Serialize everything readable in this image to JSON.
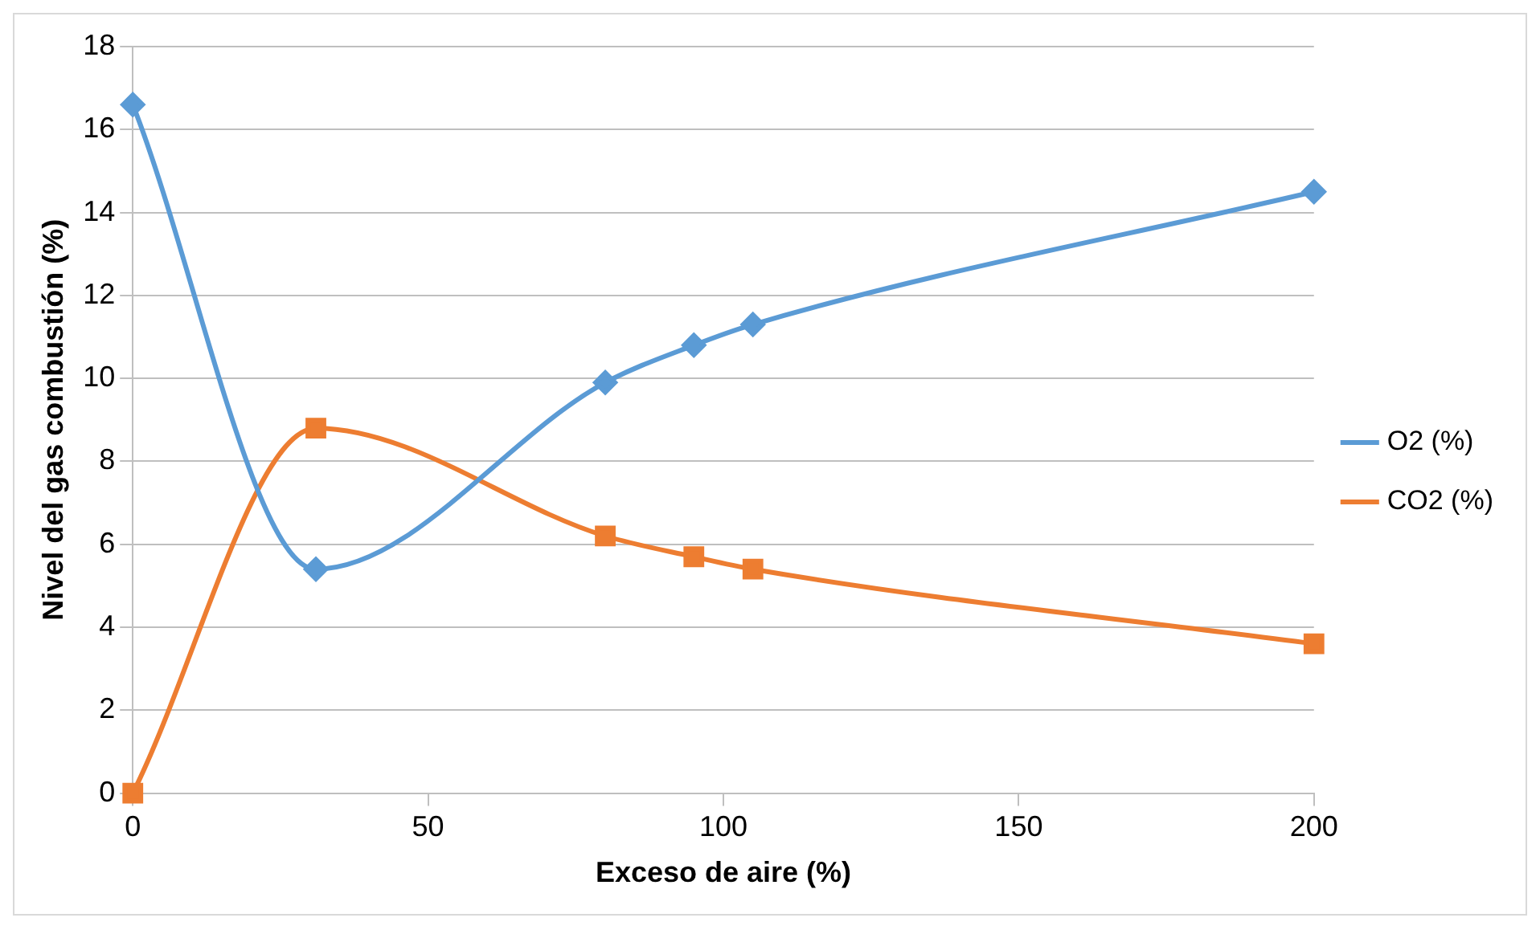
{
  "chart_data": {
    "type": "line",
    "xlabel": "Exceso de aire (%)",
    "ylabel": "Nivel del gas combustión (%)",
    "x": [
      0,
      31,
      80,
      95,
      105,
      200
    ],
    "series": [
      {
        "name": "O2 (%)",
        "color": "#5b9bd5",
        "marker": "diamond",
        "values": [
          16.6,
          5.4,
          9.9,
          10.8,
          11.3,
          14.5
        ]
      },
      {
        "name": "CO2 (%)",
        "color": "#ed7d31",
        "marker": "square",
        "values": [
          0,
          8.8,
          6.2,
          5.7,
          5.4,
          3.6
        ]
      }
    ],
    "xlim": [
      0,
      200
    ],
    "xticks": [
      0,
      50,
      100,
      150,
      200
    ],
    "ylim": [
      0,
      18
    ],
    "yticks": [
      0,
      2,
      4,
      6,
      8,
      10,
      12,
      14,
      16,
      18
    ],
    "grid": "y",
    "legend": "right"
  }
}
